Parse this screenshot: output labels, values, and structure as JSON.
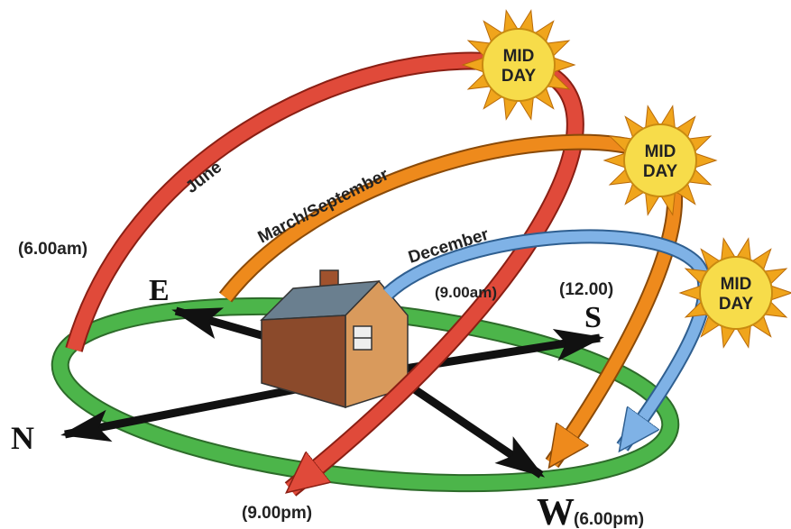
{
  "arcs": [
    {
      "label": "June",
      "sun": [
        "MID",
        "DAY"
      ]
    },
    {
      "label": "March/September",
      "sun": [
        "MID",
        "DAY"
      ]
    },
    {
      "label": "December",
      "sun": [
        "MID",
        "DAY"
      ]
    }
  ],
  "compass": {
    "north": "N",
    "east": "E",
    "south": "S",
    "west": "W"
  },
  "times": {
    "sunrise_june": "(6.00am)",
    "morning": "(9.00am)",
    "noon": "(12.00)",
    "evening": "(9.00pm)",
    "sunset": "(6.00pm)"
  }
}
